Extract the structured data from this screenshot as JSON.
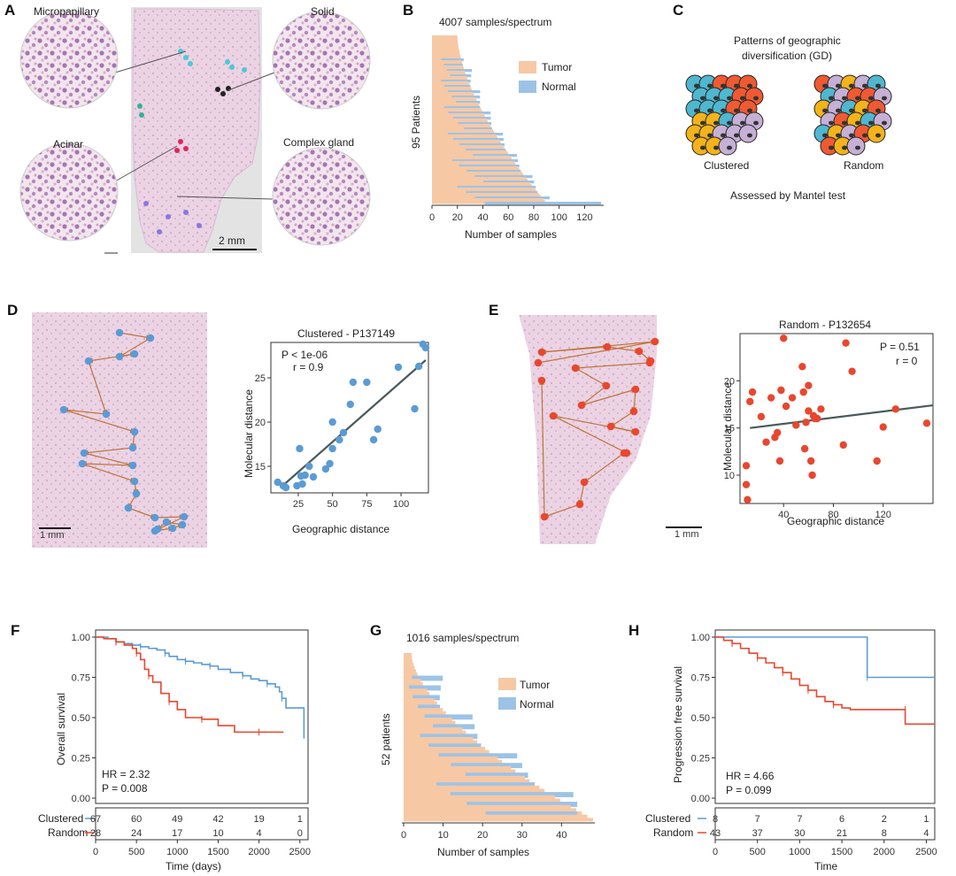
{
  "panels": {
    "A": {
      "label": "A",
      "regions": [
        "Micropapillary",
        "Acinar",
        "Solid",
        "Complex gland"
      ],
      "scale_bar": "2 mm"
    },
    "B": {
      "label": "B",
      "title": "4007 samples/spectrum",
      "ylabel": "95 Patients",
      "xlabel": "Number of samples",
      "legend": [
        "Tumor",
        "Normal"
      ],
      "xticks": [
        "0",
        "20",
        "40",
        "60",
        "80",
        "100",
        "120"
      ]
    },
    "C": {
      "label": "C",
      "title_line1": "Patterns of geographic",
      "title_line2": "diversification (GD)",
      "left_caption": "Clustered",
      "right_caption": "Random",
      "footer": "Assessed by Mantel test"
    },
    "D": {
      "label": "D",
      "scale_bar": "1 mm",
      "plot_title": "Clustered - P137149",
      "stat_p": "P < 1e-06",
      "stat_r": "r = 0.9",
      "xlabel": "Geographic distance",
      "ylabel": "Molecular distance",
      "xticks": [
        "25",
        "50",
        "75",
        "100"
      ],
      "yticks": [
        "15",
        "20",
        "25"
      ]
    },
    "E": {
      "label": "E",
      "scale_bar": "1 mm",
      "plot_title": "Random - P132654",
      "stat_p": "P = 0.51",
      "stat_r": "r = 0",
      "xlabel": "Geographic distance",
      "ylabel": "Molecular distance",
      "xticks": [
        "40",
        "80",
        "120"
      ],
      "yticks": [
        "10",
        "15",
        "20"
      ]
    },
    "F": {
      "label": "F",
      "ylabel": "Overall survival",
      "xlabel": "Time (days)",
      "hr": "HR = 2.32",
      "p": "P = 0.008",
      "yticks": [
        "1.00",
        "0.75",
        "0.50",
        "0.25",
        "0.00"
      ],
      "xticks": [
        "0",
        "500",
        "1000",
        "1500",
        "2000",
        "2500"
      ],
      "risk_clustered_label": "Clustered",
      "risk_random_label": "Random",
      "risk_clustered": [
        "67",
        "60",
        "49",
        "42",
        "19",
        "1"
      ],
      "risk_random": [
        "28",
        "24",
        "17",
        "10",
        "4",
        "0"
      ]
    },
    "G": {
      "label": "G",
      "title": "1016 samples/spectrum",
      "ylabel": "52 patients",
      "xlabel": "Number of samples",
      "legend": [
        "Tumor",
        "Normal"
      ],
      "xticks": [
        "0",
        "10",
        "20",
        "30",
        "40"
      ]
    },
    "H": {
      "label": "H",
      "ylabel": "Progression free survival",
      "xlabel": "Time",
      "hr": "HR = 4.66",
      "p": "P = 0.099",
      "yticks": [
        "1.00",
        "0.75",
        "0.50",
        "0.25",
        "0.00"
      ],
      "xticks": [
        "0",
        "500",
        "1000",
        "1500",
        "2000",
        "2500"
      ],
      "risk_clustered_label": "Clustered",
      "risk_random_label": "Random",
      "risk_clustered": [
        "8",
        "7",
        "7",
        "6",
        "2",
        "1"
      ],
      "risk_random": [
        "43",
        "37",
        "30",
        "21",
        "8",
        "4"
      ]
    }
  },
  "colors": {
    "tumor": "#f7c8a4",
    "normal": "#9cc3e6",
    "blue": "#5b9bd5",
    "red": "#e8472e",
    "arrow": "#c0753a",
    "tissue": "#e8cfe0",
    "line": "#4a5a5a"
  },
  "chart_data": [
    {
      "id": "D",
      "type": "scatter",
      "title": "Clustered - P137149",
      "xlabel": "Geographic distance",
      "ylabel": "Molecular distance",
      "xlim": [
        5,
        120
      ],
      "ylim": [
        12,
        29
      ],
      "points": [
        [
          10,
          13.2
        ],
        [
          14,
          12.8
        ],
        [
          16,
          12.6
        ],
        [
          24,
          12.8
        ],
        [
          26,
          17
        ],
        [
          27,
          13.9
        ],
        [
          28,
          13
        ],
        [
          30,
          14
        ],
        [
          33,
          15
        ],
        [
          36,
          13.8
        ],
        [
          45,
          14.7
        ],
        [
          48,
          15.3
        ],
        [
          50,
          17
        ],
        [
          50,
          20
        ],
        [
          55,
          18
        ],
        [
          58,
          18.8
        ],
        [
          63,
          22
        ],
        [
          65,
          24.5
        ],
        [
          75,
          24.5
        ],
        [
          80,
          18
        ],
        [
          83,
          19.2
        ],
        [
          98,
          26.2
        ],
        [
          110,
          21.5
        ],
        [
          113,
          26.3
        ],
        [
          116,
          28.8
        ],
        [
          118,
          28.4
        ]
      ],
      "fit": [
        [
          15,
          13
        ],
        [
          118,
          27
        ]
      ]
    },
    {
      "id": "E",
      "type": "scatter",
      "title": "Random - P132654",
      "xlabel": "Geographic distance",
      "ylabel": "Molecular distance",
      "xlim": [
        5,
        160
      ],
      "ylim": [
        7,
        25
      ],
      "points": [
        [
          10,
          11
        ],
        [
          10,
          9
        ],
        [
          11,
          7.4
        ],
        [
          13,
          17.8
        ],
        [
          15,
          18.8
        ],
        [
          22,
          16.2
        ],
        [
          26,
          13.5
        ],
        [
          30,
          18.2
        ],
        [
          35,
          14.5
        ],
        [
          37,
          11.5
        ],
        [
          38,
          19
        ],
        [
          40,
          24.5
        ],
        [
          42,
          17.3
        ],
        [
          47,
          18.2
        ],
        [
          50,
          15.3
        ],
        [
          55,
          21.5
        ],
        [
          56,
          18.8
        ],
        [
          57,
          12.8
        ],
        [
          58,
          15.6
        ],
        [
          60,
          16.8
        ],
        [
          62,
          11.5
        ],
        [
          63,
          10
        ],
        [
          64,
          16.3
        ],
        [
          65,
          16
        ],
        [
          67,
          16
        ],
        [
          70,
          17
        ],
        [
          88,
          13.2
        ],
        [
          90,
          24
        ],
        [
          95,
          21
        ],
        [
          115,
          11.5
        ],
        [
          120,
          15.1
        ],
        [
          130,
          17
        ],
        [
          155,
          15.5
        ],
        [
          60,
          19.5
        ],
        [
          33,
          14
        ]
      ],
      "fit": [
        [
          13,
          15
        ],
        [
          160,
          17.4
        ]
      ]
    },
    {
      "id": "F",
      "type": "line",
      "title": "",
      "xlabel": "Time (days)",
      "ylabel": "Overall survival",
      "xlim": [
        0,
        2600
      ],
      "ylim": [
        0,
        1
      ],
      "series": [
        {
          "name": "Clustered",
          "x": [
            0,
            150,
            250,
            350,
            450,
            550,
            650,
            750,
            850,
            900,
            1000,
            1100,
            1200,
            1300,
            1400,
            1500,
            1650,
            1800,
            1900,
            2000,
            2100,
            2200,
            2250,
            2280,
            2330,
            2550
          ],
          "y": [
            1,
            0.99,
            0.97,
            0.96,
            0.95,
            0.94,
            0.93,
            0.92,
            0.9,
            0.88,
            0.86,
            0.85,
            0.84,
            0.83,
            0.82,
            0.8,
            0.78,
            0.76,
            0.74,
            0.73,
            0.71,
            0.69,
            0.66,
            0.62,
            0.56,
            0.37
          ]
        },
        {
          "name": "Random",
          "x": [
            0,
            100,
            250,
            350,
            450,
            500,
            550,
            600,
            650,
            700,
            800,
            900,
            1000,
            1100,
            1300,
            1500,
            1700,
            2000,
            2300
          ],
          "y": [
            1,
            0.99,
            0.97,
            0.95,
            0.93,
            0.9,
            0.86,
            0.8,
            0.76,
            0.72,
            0.65,
            0.6,
            0.55,
            0.5,
            0.49,
            0.45,
            0.41,
            0.41,
            0.41
          ]
        }
      ]
    },
    {
      "id": "H",
      "type": "line",
      "title": "",
      "xlabel": "Time",
      "ylabel": "Progression free survival",
      "xlim": [
        0,
        2600
      ],
      "ylim": [
        0,
        1
      ],
      "series": [
        {
          "name": "Clustered",
          "x": [
            0,
            1800,
            1800,
            2600
          ],
          "y": [
            1,
            1,
            0.75,
            0.75
          ]
        },
        {
          "name": "Random",
          "x": [
            0,
            100,
            200,
            300,
            400,
            500,
            600,
            700,
            800,
            900,
            1000,
            1100,
            1200,
            1300,
            1400,
            1500,
            1600,
            2250,
            2250,
            2600
          ],
          "y": [
            1,
            0.98,
            0.96,
            0.93,
            0.9,
            0.87,
            0.84,
            0.81,
            0.78,
            0.74,
            0.7,
            0.67,
            0.63,
            0.6,
            0.58,
            0.56,
            0.55,
            0.55,
            0.46,
            0.46
          ]
        }
      ]
    },
    {
      "id": "B",
      "type": "bar",
      "title": "4007 samples/spectrum",
      "xlabel": "Number of samples",
      "ylabel": "95 Patients",
      "xlim": [
        0,
        135
      ],
      "n_patients": 95,
      "tumor_range": [
        20,
        90
      ],
      "normal_max": 133
    },
    {
      "id": "G",
      "type": "bar",
      "title": "1016 samples/spectrum",
      "xlabel": "Number of samples",
      "ylabel": "52 patients",
      "xlim": [
        0,
        48
      ],
      "n_patients": 52,
      "tumor_range": [
        2,
        48
      ],
      "normal_max": 44
    }
  ]
}
